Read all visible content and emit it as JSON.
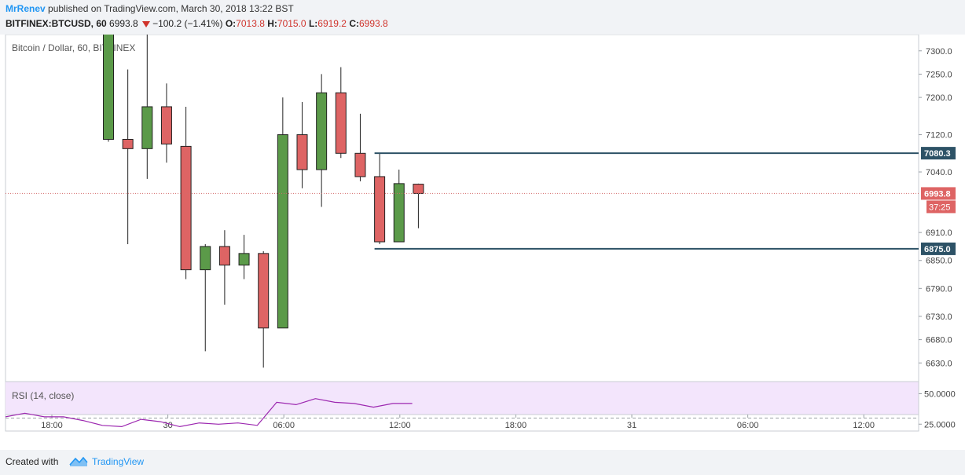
{
  "header": {
    "author": "MrRenev",
    "published_text": "published on TradingView.com, March 30, 2018 13:22 BST",
    "symbol": "BITFINEX:BTCUSD, 60",
    "last_price": "6993.8",
    "change": "−100.2 (−1.41%)",
    "open_label": "O:",
    "open": "7013.8",
    "high_label": "H:",
    "high": "7015.0",
    "low_label": "L:",
    "low": "6919.2",
    "close_label": "C:",
    "close": "6993.8"
  },
  "footer": {
    "created_with": "Created with",
    "brand": "TradingView"
  },
  "colors": {
    "up": "#5b9a49",
    "down": "#de6464",
    "candle_border": "#222222",
    "level_line": "#2d5266",
    "price_line": "#d46a6a",
    "rsi_line": "#9c27b0",
    "rsi_bg": "#f3e5fc"
  },
  "chart_data": {
    "type": "candlestick",
    "title": "Bitcoin / Dollar, 60, BITFINEX",
    "y_range": [
      6590,
      7335
    ],
    "y_ticks": [
      "7300.0",
      "7250.0",
      "7200.0",
      "7120.0",
      "7040.0",
      "6910.0",
      "6850.0",
      "6790.0",
      "6730.0",
      "6680.0",
      "6630.0"
    ],
    "x_ticks": [
      "18:00",
      "30",
      "06:00",
      "12:00",
      "18:00",
      "31",
      "06:00",
      "12:00"
    ],
    "candles": [
      {
        "o": 7110,
        "h": 7340,
        "l": 7105,
        "c": 7340
      },
      {
        "o": 7110,
        "h": 7260,
        "l": 6885,
        "c": 7090
      },
      {
        "o": 7090,
        "h": 7345,
        "l": 7025,
        "c": 7180
      },
      {
        "o": 7180,
        "h": 7230,
        "l": 7060,
        "c": 7100
      },
      {
        "o": 7095,
        "h": 7180,
        "l": 6810,
        "c": 6830
      },
      {
        "o": 6830,
        "h": 6885,
        "l": 6655,
        "c": 6880
      },
      {
        "o": 6880,
        "h": 6915,
        "l": 6755,
        "c": 6840
      },
      {
        "o": 6840,
        "h": 6905,
        "l": 6810,
        "c": 6865
      },
      {
        "o": 6865,
        "h": 6870,
        "l": 6620,
        "c": 6705
      },
      {
        "o": 6705,
        "h": 7200,
        "l": 6705,
        "c": 7120
      },
      {
        "o": 7120,
        "h": 7190,
        "l": 7005,
        "c": 7045
      },
      {
        "o": 7045,
        "h": 7250,
        "l": 6965,
        "c": 7210
      },
      {
        "o": 7210,
        "h": 7265,
        "l": 7070,
        "c": 7080
      },
      {
        "o": 7080,
        "h": 7165,
        "l": 7020,
        "c": 7030
      },
      {
        "o": 7030,
        "h": 7080,
        "l": 6885,
        "c": 6890
      },
      {
        "o": 6890,
        "h": 7045,
        "l": 6890,
        "c": 7015
      },
      {
        "o": 7013.8,
        "h": 7015,
        "l": 6919.2,
        "c": 6993.8
      }
    ],
    "current_price": {
      "value": 6993.8,
      "label": "6993.8",
      "countdown": "37:25"
    },
    "levels": [
      {
        "value": 7080.3,
        "label": "7080.3"
      },
      {
        "value": 6875.0,
        "label": "6875.0"
      }
    ],
    "rsi": {
      "title": "RSI (14, close)",
      "y_range": [
        20,
        60
      ],
      "ticks": [
        "50.0000",
        "25.0000"
      ],
      "reference": 30,
      "values": [
        31,
        34,
        31,
        31,
        28,
        24,
        23,
        29,
        27,
        23,
        26,
        25,
        26,
        24,
        43,
        41,
        46,
        43,
        42,
        39,
        42,
        42
      ]
    }
  }
}
